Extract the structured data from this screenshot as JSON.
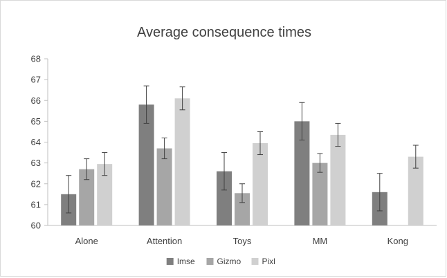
{
  "chart_data": {
    "type": "bar",
    "title": "Average consequence times",
    "xlabel": "",
    "ylabel": "",
    "ylim": [
      60,
      68
    ],
    "yticks": [
      60,
      61,
      62,
      63,
      64,
      65,
      66,
      67,
      68
    ],
    "categories": [
      "Alone",
      "Attention",
      "Toys",
      "MM",
      "Kong"
    ],
    "series": [
      {
        "name": "Imse",
        "color": "#7f7f7f",
        "values": [
          61.5,
          65.8,
          62.6,
          65.0,
          61.6
        ],
        "errors": [
          0.9,
          0.9,
          0.9,
          0.9,
          0.9
        ]
      },
      {
        "name": "Gizmo",
        "color": "#a6a6a6",
        "values": [
          62.7,
          63.7,
          61.55,
          63.0,
          null
        ],
        "errors": [
          0.5,
          0.5,
          0.45,
          0.45,
          null
        ]
      },
      {
        "name": "Pixl",
        "color": "#d0d0d0",
        "values": [
          62.95,
          66.1,
          63.95,
          64.35,
          63.3
        ],
        "errors": [
          0.55,
          0.55,
          0.55,
          0.55,
          0.55
        ]
      }
    ],
    "error_bars": true,
    "grid": false,
    "legend_position": "bottom"
  }
}
